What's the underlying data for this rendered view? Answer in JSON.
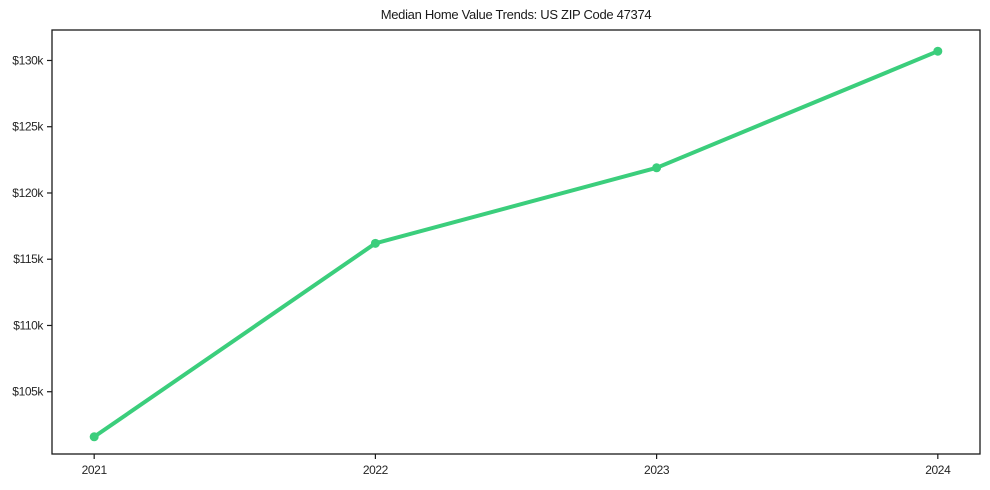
{
  "figure": {
    "background": "#ffffff"
  },
  "chart_data": {
    "type": "line",
    "title": "Median Home Value Trends: US ZIP Code 47374",
    "categories": [
      "2021",
      "2022",
      "2023",
      "2024"
    ],
    "series": [
      {
        "name": "Median Home Value",
        "values": [
          101600,
          116200,
          121900,
          130700
        ],
        "color": "#3bce7c"
      }
    ],
    "xlabel": "",
    "ylabel": "",
    "ylim": [
      100300,
      132300
    ],
    "xlim_index": [
      -0.15,
      3.15
    ],
    "yticks": [
      105000,
      110000,
      115000,
      120000,
      125000,
      130000
    ],
    "ytick_labels": [
      "$105k",
      "$110k",
      "$115k",
      "$120k",
      "$125k",
      "$130k"
    ],
    "grid": false,
    "legend_position": "none",
    "line_width": 4,
    "marker_radius": 4.5,
    "axis_color": "#1a1a1a",
    "tick_label_color": "#262626"
  }
}
